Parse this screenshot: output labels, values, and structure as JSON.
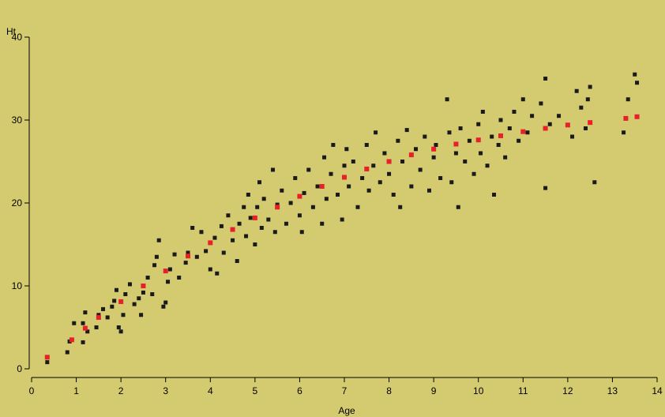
{
  "chart_data": {
    "type": "scatter",
    "title": "",
    "xlabel": "Age",
    "ylabel": "Ht",
    "xlim": [
      0,
      14
    ],
    "ylim": [
      0,
      40
    ],
    "x_ticks": [
      "0",
      "1",
      "2",
      "3",
      "4",
      "5",
      "6",
      "7",
      "8",
      "9",
      "10",
      "11",
      "12",
      "13",
      "14"
    ],
    "y_ticks": [
      "0",
      "10",
      "20",
      "30",
      "40"
    ],
    "grid": false,
    "legend": "none",
    "colors": {
      "background": "#d4cb70",
      "observed": "#1a1a1a",
      "fitted": "#e8202a",
      "axis": "#000000"
    },
    "series": [
      {
        "role": "observed",
        "points": [
          [
            0.35,
            0.8
          ],
          [
            0.8,
            2.0
          ],
          [
            0.85,
            3.3
          ],
          [
            0.95,
            5.5
          ],
          [
            1.15,
            3.2
          ],
          [
            1.15,
            5.5
          ],
          [
            1.2,
            6.8
          ],
          [
            1.25,
            4.5
          ],
          [
            1.45,
            5.0
          ],
          [
            1.5,
            6.5
          ],
          [
            1.6,
            7.2
          ],
          [
            1.7,
            6.2
          ],
          [
            1.8,
            7.5
          ],
          [
            1.85,
            8.2
          ],
          [
            1.9,
            9.5
          ],
          [
            1.95,
            5.0
          ],
          [
            2.0,
            4.5
          ],
          [
            2.05,
            6.5
          ],
          [
            2.1,
            9.0
          ],
          [
            2.2,
            10.2
          ],
          [
            2.3,
            7.8
          ],
          [
            2.4,
            8.5
          ],
          [
            2.45,
            6.5
          ],
          [
            2.5,
            9.2
          ],
          [
            2.6,
            11.0
          ],
          [
            2.7,
            9.0
          ],
          [
            2.75,
            12.5
          ],
          [
            2.8,
            13.5
          ],
          [
            2.85,
            15.5
          ],
          [
            2.95,
            7.5
          ],
          [
            3.0,
            8.0
          ],
          [
            3.05,
            10.5
          ],
          [
            3.1,
            12.0
          ],
          [
            3.2,
            13.8
          ],
          [
            3.3,
            11.0
          ],
          [
            3.45,
            12.8
          ],
          [
            3.5,
            14.0
          ],
          [
            3.6,
            17.0
          ],
          [
            3.7,
            13.5
          ],
          [
            3.8,
            16.5
          ],
          [
            3.9,
            14.2
          ],
          [
            4.0,
            12.0
          ],
          [
            4.1,
            15.8
          ],
          [
            4.15,
            11.5
          ],
          [
            4.25,
            17.2
          ],
          [
            4.3,
            14.0
          ],
          [
            4.4,
            18.5
          ],
          [
            4.5,
            15.5
          ],
          [
            4.6,
            13.0
          ],
          [
            4.65,
            17.5
          ],
          [
            4.75,
            19.5
          ],
          [
            4.8,
            16.0
          ],
          [
            4.85,
            21.0
          ],
          [
            4.9,
            18.2
          ],
          [
            5.0,
            15.0
          ],
          [
            5.05,
            19.5
          ],
          [
            5.1,
            22.5
          ],
          [
            5.15,
            17.0
          ],
          [
            5.2,
            20.5
          ],
          [
            5.3,
            18.0
          ],
          [
            5.4,
            24.0
          ],
          [
            5.45,
            16.5
          ],
          [
            5.5,
            19.8
          ],
          [
            5.6,
            21.5
          ],
          [
            5.7,
            17.5
          ],
          [
            5.8,
            20.0
          ],
          [
            5.9,
            23.0
          ],
          [
            6.0,
            18.5
          ],
          [
            6.05,
            16.5
          ],
          [
            6.1,
            21.2
          ],
          [
            6.2,
            24.0
          ],
          [
            6.3,
            19.5
          ],
          [
            6.4,
            22.0
          ],
          [
            6.5,
            17.5
          ],
          [
            6.55,
            25.5
          ],
          [
            6.6,
            20.5
          ],
          [
            6.7,
            23.5
          ],
          [
            6.75,
            27.0
          ],
          [
            6.85,
            21.0
          ],
          [
            6.95,
            18.0
          ],
          [
            7.0,
            24.5
          ],
          [
            7.05,
            26.5
          ],
          [
            7.1,
            22.0
          ],
          [
            7.2,
            25.0
          ],
          [
            7.3,
            19.5
          ],
          [
            7.4,
            23.0
          ],
          [
            7.5,
            27.0
          ],
          [
            7.55,
            21.5
          ],
          [
            7.65,
            24.5
          ],
          [
            7.7,
            28.5
          ],
          [
            7.8,
            22.5
          ],
          [
            7.9,
            26.0
          ],
          [
            8.0,
            23.5
          ],
          [
            8.1,
            21.0
          ],
          [
            8.2,
            27.5
          ],
          [
            8.25,
            19.5
          ],
          [
            8.3,
            25.0
          ],
          [
            8.4,
            28.8
          ],
          [
            8.5,
            22.0
          ],
          [
            8.6,
            26.5
          ],
          [
            8.7,
            24.0
          ],
          [
            8.8,
            28.0
          ],
          [
            8.9,
            21.5
          ],
          [
            9.0,
            25.5
          ],
          [
            9.05,
            27.0
          ],
          [
            9.15,
            23.0
          ],
          [
            9.3,
            32.5
          ],
          [
            9.35,
            28.5
          ],
          [
            9.4,
            22.5
          ],
          [
            9.5,
            26.0
          ],
          [
            9.55,
            19.5
          ],
          [
            9.6,
            29.0
          ],
          [
            9.7,
            25.0
          ],
          [
            9.8,
            27.5
          ],
          [
            9.9,
            23.5
          ],
          [
            10.0,
            29.5
          ],
          [
            10.05,
            26.0
          ],
          [
            10.1,
            31.0
          ],
          [
            10.2,
            24.5
          ],
          [
            10.3,
            28.0
          ],
          [
            10.35,
            21.0
          ],
          [
            10.45,
            27.0
          ],
          [
            10.5,
            30.0
          ],
          [
            10.6,
            25.5
          ],
          [
            10.7,
            29.0
          ],
          [
            10.8,
            31.0
          ],
          [
            10.9,
            27.5
          ],
          [
            11.0,
            32.5
          ],
          [
            11.1,
            28.5
          ],
          [
            11.2,
            30.5
          ],
          [
            11.4,
            32.0
          ],
          [
            11.5,
            35.0
          ],
          [
            11.5,
            21.8
          ],
          [
            11.6,
            29.5
          ],
          [
            11.8,
            30.5
          ],
          [
            12.1,
            28.0
          ],
          [
            12.2,
            33.5
          ],
          [
            12.3,
            31.5
          ],
          [
            12.4,
            29.0
          ],
          [
            12.45,
            32.5
          ],
          [
            12.5,
            34.0
          ],
          [
            12.6,
            22.5
          ],
          [
            13.25,
            28.5
          ],
          [
            13.35,
            32.5
          ],
          [
            13.5,
            35.5
          ],
          [
            13.55,
            34.5
          ]
        ]
      },
      {
        "role": "fitted",
        "points": [
          [
            0.35,
            1.4
          ],
          [
            0.9,
            3.5
          ],
          [
            1.2,
            4.9
          ],
          [
            1.5,
            6.2
          ],
          [
            2.0,
            8.1
          ],
          [
            2.5,
            10.0
          ],
          [
            3.0,
            11.8
          ],
          [
            3.5,
            13.6
          ],
          [
            4.0,
            15.2
          ],
          [
            4.5,
            16.8
          ],
          [
            5.0,
            18.2
          ],
          [
            5.5,
            19.5
          ],
          [
            6.0,
            20.8
          ],
          [
            6.5,
            22.0
          ],
          [
            7.0,
            23.1
          ],
          [
            7.5,
            24.1
          ],
          [
            8.0,
            25.0
          ],
          [
            8.5,
            25.8
          ],
          [
            9.0,
            26.5
          ],
          [
            9.5,
            27.1
          ],
          [
            10.0,
            27.6
          ],
          [
            10.5,
            28.1
          ],
          [
            11.0,
            28.6
          ],
          [
            11.5,
            29.0
          ],
          [
            12.0,
            29.4
          ],
          [
            12.5,
            29.7
          ],
          [
            13.3,
            30.2
          ],
          [
            13.55,
            30.4
          ]
        ]
      }
    ]
  }
}
